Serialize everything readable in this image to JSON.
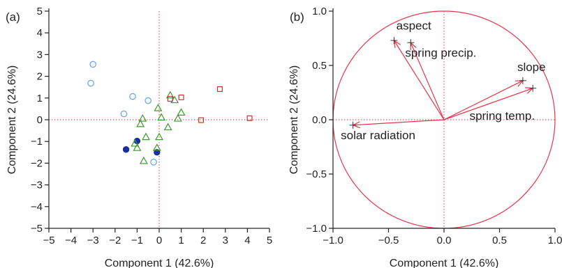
{
  "colors": {
    "accent": "#e8344a",
    "circle_open": "#6aa9e8",
    "circle_filled": "#1a2f9e",
    "triangle": "#3a9a2a",
    "square": "#c0392b",
    "axis": "#222222"
  },
  "chart_data": [
    {
      "type": "scatter",
      "panel_label": "(a)",
      "xlabel": "Component 1 (42.6%)",
      "ylabel": "Component 2 (24.6%)",
      "xlim": [
        -5,
        5
      ],
      "ylim": [
        -5,
        5
      ],
      "xticks": [
        -5,
        -4,
        -3,
        -2,
        -1,
        0,
        1,
        2,
        3,
        4,
        5
      ],
      "yticks": [
        -5,
        -4,
        -3,
        -2,
        -1,
        0,
        1,
        2,
        3,
        4,
        5
      ],
      "xtick_labels": [
        "−5",
        "−4",
        "−3",
        "−2",
        "−1",
        "0",
        "1",
        "2",
        "3",
        "4",
        "5"
      ],
      "ytick_labels": [
        "−5",
        "−4",
        "−3",
        "−2",
        "−1",
        "0",
        "1",
        "2",
        "3",
        "4",
        "5"
      ],
      "reference_lines": {
        "x": 0,
        "y": 0,
        "style": "dotted"
      },
      "series": [
        {
          "marker": "circle-open",
          "color": "#6aa9e8",
          "points": [
            [
              -3.0,
              2.55
            ],
            [
              -3.1,
              1.68
            ],
            [
              -1.2,
              1.07
            ],
            [
              -0.5,
              0.88
            ],
            [
              -1.6,
              0.27
            ],
            [
              -0.25,
              -1.95
            ]
          ]
        },
        {
          "marker": "circle-filled",
          "color": "#1a2f9e",
          "points": [
            [
              -1.5,
              -1.37
            ],
            [
              -1.0,
              -0.98
            ],
            [
              -0.1,
              -1.5
            ]
          ]
        },
        {
          "marker": "triangle",
          "color": "#3a9a2a",
          "points": [
            [
              0.5,
              1.12
            ],
            [
              0.7,
              0.9
            ],
            [
              -0.05,
              0.53
            ],
            [
              1.0,
              0.33
            ],
            [
              0.85,
              0.05
            ],
            [
              0.1,
              0.1
            ],
            [
              -0.75,
              0.05
            ],
            [
              -0.85,
              -0.2
            ],
            [
              0.4,
              -0.35
            ],
            [
              -0.6,
              -0.8
            ],
            [
              0.0,
              -0.8
            ],
            [
              -0.1,
              -1.3
            ],
            [
              -1.1,
              -1.1
            ],
            [
              -1.0,
              -1.3
            ],
            [
              -0.7,
              -1.9
            ]
          ]
        },
        {
          "marker": "square-open",
          "color": "#c0392b",
          "points": [
            [
              0.5,
              0.96
            ],
            [
              1.0,
              1.03
            ],
            [
              2.75,
              1.41
            ],
            [
              1.9,
              -0.02
            ],
            [
              4.1,
              0.07
            ]
          ]
        }
      ]
    },
    {
      "type": "scatter",
      "subtype": "biplot-loadings",
      "panel_label": "(b)",
      "xlabel": "Component 1 (42.6%)",
      "ylabel": "Component 2 (24.6%)",
      "xlim": [
        -1.0,
        1.0
      ],
      "ylim": [
        -1.0,
        1.0
      ],
      "xticks": [
        -1.0,
        -0.5,
        0.0,
        0.5,
        1.0
      ],
      "yticks": [
        -1.0,
        -0.5,
        0.0,
        0.5,
        1.0
      ],
      "xtick_labels": [
        "−1.0",
        "−0.5",
        "0.0",
        "0.5",
        "1.0"
      ],
      "ytick_labels": [
        "−1.0",
        "−0.5",
        "0.0",
        "0.5",
        "1.0"
      ],
      "unit_circle": true,
      "reference_lines": {
        "x": 0,
        "y": 0,
        "style": "dotted"
      },
      "vectors": [
        {
          "label": "aspect",
          "x": -0.45,
          "y": 0.73,
          "label_pos": [
            -0.43,
            0.83
          ]
        },
        {
          "label": "spring precip.",
          "x": -0.3,
          "y": 0.71,
          "label_pos": [
            -0.35,
            0.58
          ]
        },
        {
          "label": "slope",
          "x": 0.71,
          "y": 0.36,
          "label_pos": [
            0.66,
            0.45
          ]
        },
        {
          "label": "spring temp.",
          "x": 0.8,
          "y": 0.29,
          "label_pos": [
            0.23,
            0.0
          ]
        },
        {
          "label": "solar radiation",
          "x": -0.82,
          "y": -0.05,
          "label_pos": [
            -0.93,
            -0.18
          ]
        }
      ]
    }
  ]
}
